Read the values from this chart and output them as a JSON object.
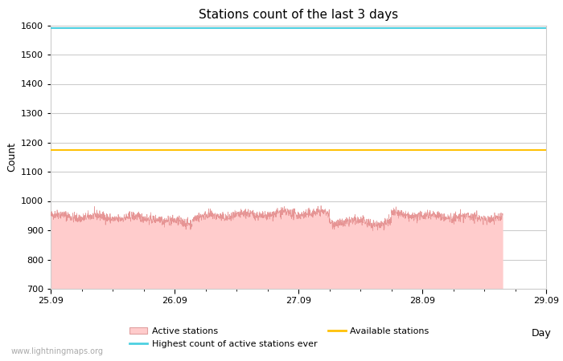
{
  "title": "Stations count of the last 3 days",
  "xlabel": "Day",
  "ylabel": "Count",
  "ylim": [
    700,
    1600
  ],
  "yticks": [
    700,
    800,
    900,
    1000,
    1100,
    1200,
    1300,
    1400,
    1500,
    1600
  ],
  "xlim_days": [
    0,
    4
  ],
  "xtick_positions": [
    0,
    1,
    2,
    3,
    4
  ],
  "xtick_labels": [
    "25.09",
    "26.09",
    "27.09",
    "28.09",
    "29.09"
  ],
  "highest_ever_value": 1590,
  "available_stations_value": 1175,
  "active_stations_min": 700,
  "highest_ever_color": "#4dd0e1",
  "available_stations_color": "#ffc107",
  "active_fill_color": "#ffcccc",
  "active_line_color": "#e08080",
  "background_color": "#ffffff",
  "grid_color": "#cccccc",
  "watermark": "www.lightningmaps.org",
  "title_fontsize": 11,
  "axis_label_fontsize": 9,
  "tick_fontsize": 8,
  "legend_fontsize": 8,
  "watermark_fontsize": 7,
  "num_points": 2160,
  "data_end_day": 3.65
}
